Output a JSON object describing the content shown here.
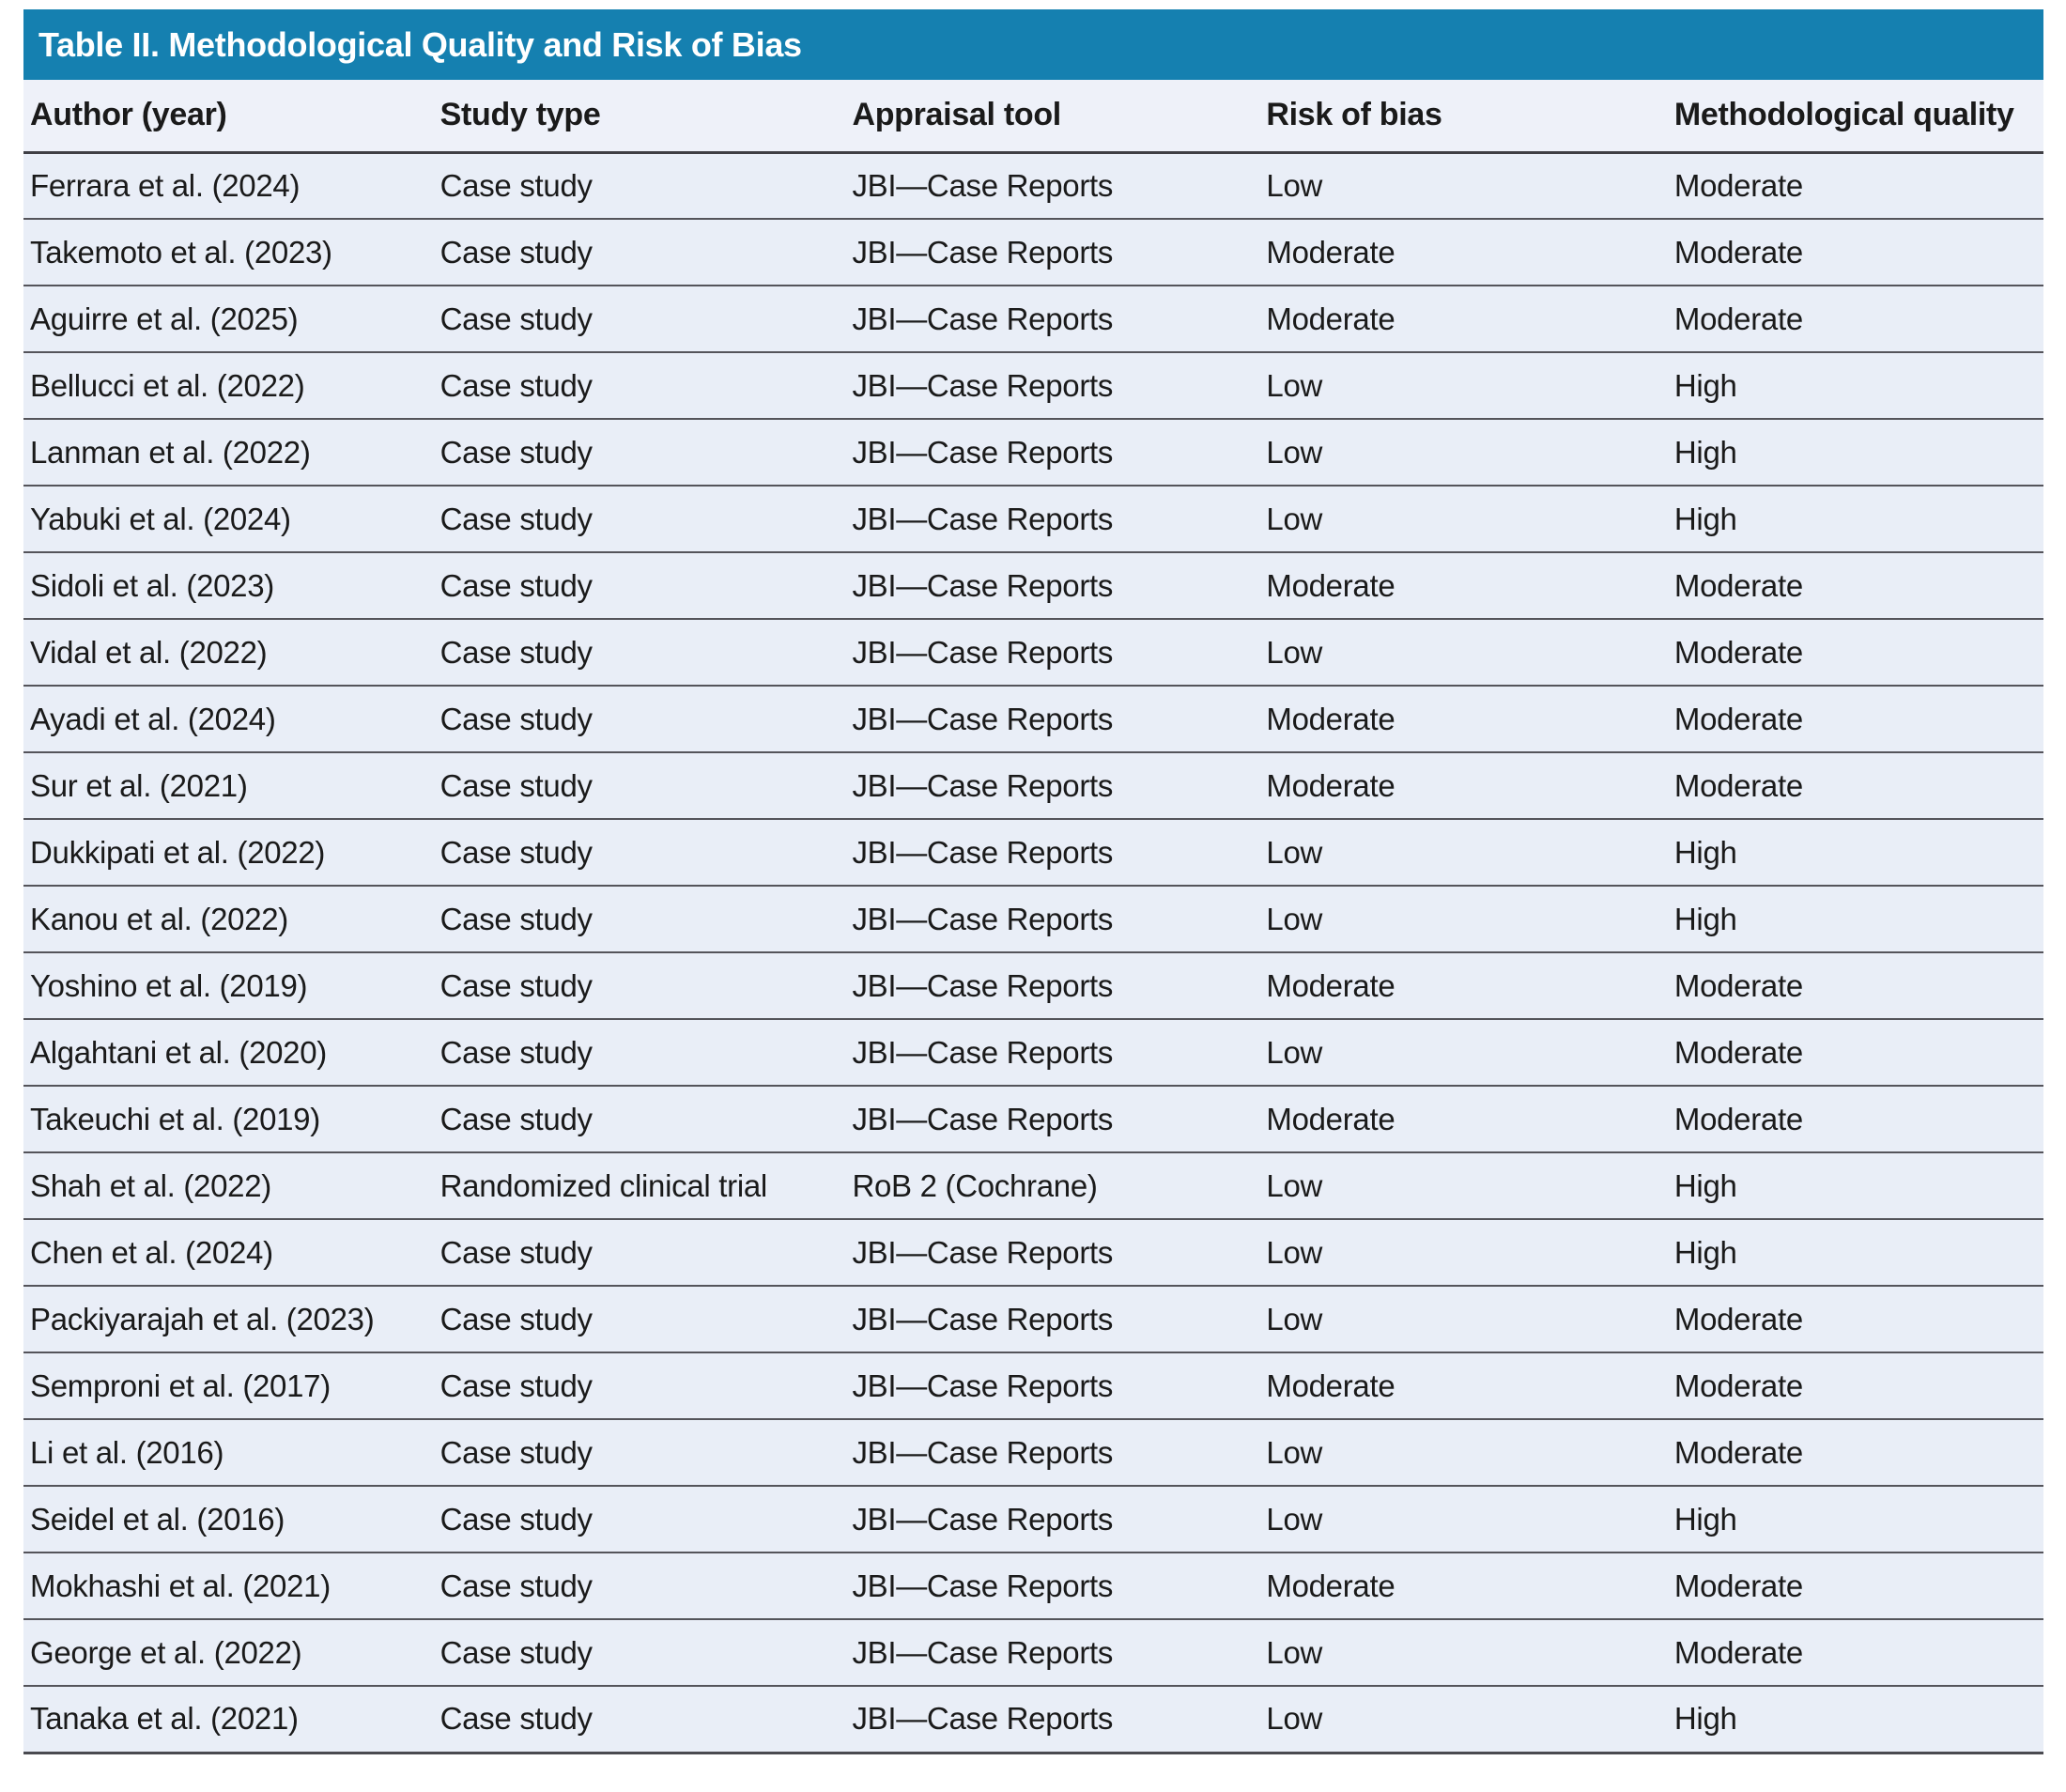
{
  "table": {
    "title": "Table II. Methodological Quality and Risk of Bias",
    "columns": [
      "Author (year)",
      "Study type",
      "Appraisal tool",
      "Risk of bias",
      "Methodological quality"
    ],
    "rows": [
      {
        "author": "Ferrara et al. (2024)",
        "study_type": "Case study",
        "appraisal_tool": "JBI—Case Reports",
        "risk_of_bias": "Low",
        "methodological_quality": "Moderate"
      },
      {
        "author": "Takemoto et al. (2023)",
        "study_type": "Case study",
        "appraisal_tool": "JBI—Case Reports",
        "risk_of_bias": "Moderate",
        "methodological_quality": "Moderate"
      },
      {
        "author": "Aguirre et al. (2025)",
        "study_type": "Case study",
        "appraisal_tool": "JBI—Case Reports",
        "risk_of_bias": "Moderate",
        "methodological_quality": "Moderate"
      },
      {
        "author": "Bellucci et al. (2022)",
        "study_type": "Case study",
        "appraisal_tool": "JBI—Case Reports",
        "risk_of_bias": "Low",
        "methodological_quality": "High"
      },
      {
        "author": "Lanman et al. (2022)",
        "study_type": "Case study",
        "appraisal_tool": "JBI—Case Reports",
        "risk_of_bias": "Low",
        "methodological_quality": "High"
      },
      {
        "author": "Yabuki et al. (2024)",
        "study_type": "Case study",
        "appraisal_tool": "JBI—Case Reports",
        "risk_of_bias": "Low",
        "methodological_quality": "High"
      },
      {
        "author": "Sidoli et al. (2023)",
        "study_type": "Case study",
        "appraisal_tool": "JBI—Case Reports",
        "risk_of_bias": "Moderate",
        "methodological_quality": "Moderate"
      },
      {
        "author": "Vidal et al. (2022)",
        "study_type": "Case study",
        "appraisal_tool": "JBI—Case Reports",
        "risk_of_bias": "Low",
        "methodological_quality": "Moderate"
      },
      {
        "author": "Ayadi et al. (2024)",
        "study_type": "Case study",
        "appraisal_tool": "JBI—Case Reports",
        "risk_of_bias": "Moderate",
        "methodological_quality": "Moderate"
      },
      {
        "author": "Sur et al. (2021)",
        "study_type": "Case study",
        "appraisal_tool": "JBI—Case Reports",
        "risk_of_bias": "Moderate",
        "methodological_quality": "Moderate"
      },
      {
        "author": "Dukkipati et al. (2022)",
        "study_type": "Case study",
        "appraisal_tool": "JBI—Case Reports",
        "risk_of_bias": "Low",
        "methodological_quality": "High"
      },
      {
        "author": "Kanou et al. (2022)",
        "study_type": "Case study",
        "appraisal_tool": "JBI—Case Reports",
        "risk_of_bias": "Low",
        "methodological_quality": "High"
      },
      {
        "author": "Yoshino et al. (2019)",
        "study_type": "Case study",
        "appraisal_tool": "JBI—Case Reports",
        "risk_of_bias": "Moderate",
        "methodological_quality": "Moderate"
      },
      {
        "author": "Algahtani et al. (2020)",
        "study_type": "Case study",
        "appraisal_tool": "JBI—Case Reports",
        "risk_of_bias": "Low",
        "methodological_quality": "Moderate"
      },
      {
        "author": "Takeuchi et al. (2019)",
        "study_type": "Case study",
        "appraisal_tool": "JBI—Case Reports",
        "risk_of_bias": "Moderate",
        "methodological_quality": "Moderate"
      },
      {
        "author": "Shah et al. (2022)",
        "study_type": "Randomized clinical trial",
        "appraisal_tool": "RoB 2 (Cochrane)",
        "risk_of_bias": "Low",
        "methodological_quality": "High"
      },
      {
        "author": "Chen et al. (2024)",
        "study_type": "Case study",
        "appraisal_tool": "JBI—Case Reports",
        "risk_of_bias": "Low",
        "methodological_quality": "High"
      },
      {
        "author": "Packiyarajah et al. (2023)",
        "study_type": "Case study",
        "appraisal_tool": "JBI—Case Reports",
        "risk_of_bias": "Low",
        "methodological_quality": "Moderate"
      },
      {
        "author": "Semproni et al. (2017)",
        "study_type": "Case study",
        "appraisal_tool": "JBI—Case Reports",
        "risk_of_bias": "Moderate",
        "methodological_quality": "Moderate"
      },
      {
        "author": "Li et al. (2016)",
        "study_type": "Case study",
        "appraisal_tool": "JBI—Case Reports",
        "risk_of_bias": "Low",
        "methodological_quality": "Moderate"
      },
      {
        "author": "Seidel et al. (2016)",
        "study_type": "Case study",
        "appraisal_tool": "JBI—Case Reports",
        "risk_of_bias": "Low",
        "methodological_quality": "High"
      },
      {
        "author": "Mokhashi et al. (2021)",
        "study_type": "Case study",
        "appraisal_tool": "JBI—Case Reports",
        "risk_of_bias": "Moderate",
        "methodological_quality": "Moderate"
      },
      {
        "author": "George et al. (2022)",
        "study_type": "Case study",
        "appraisal_tool": "JBI—Case Reports",
        "risk_of_bias": "Low",
        "methodological_quality": "Moderate"
      },
      {
        "author": "Tanaka et al. (2021)",
        "study_type": "Case study",
        "appraisal_tool": "JBI—Case Reports",
        "risk_of_bias": "Low",
        "methodological_quality": "High"
      }
    ],
    "colors": {
      "header_bar": "#1580b0",
      "header_row_bg": "#eef1f9",
      "row_bg": "#e9eef7",
      "line": "#54545a",
      "header_line": "#3f3f44",
      "bottom_line": "#4a4a50",
      "text": "#1a1a1a",
      "title_text": "#ffffff"
    }
  }
}
